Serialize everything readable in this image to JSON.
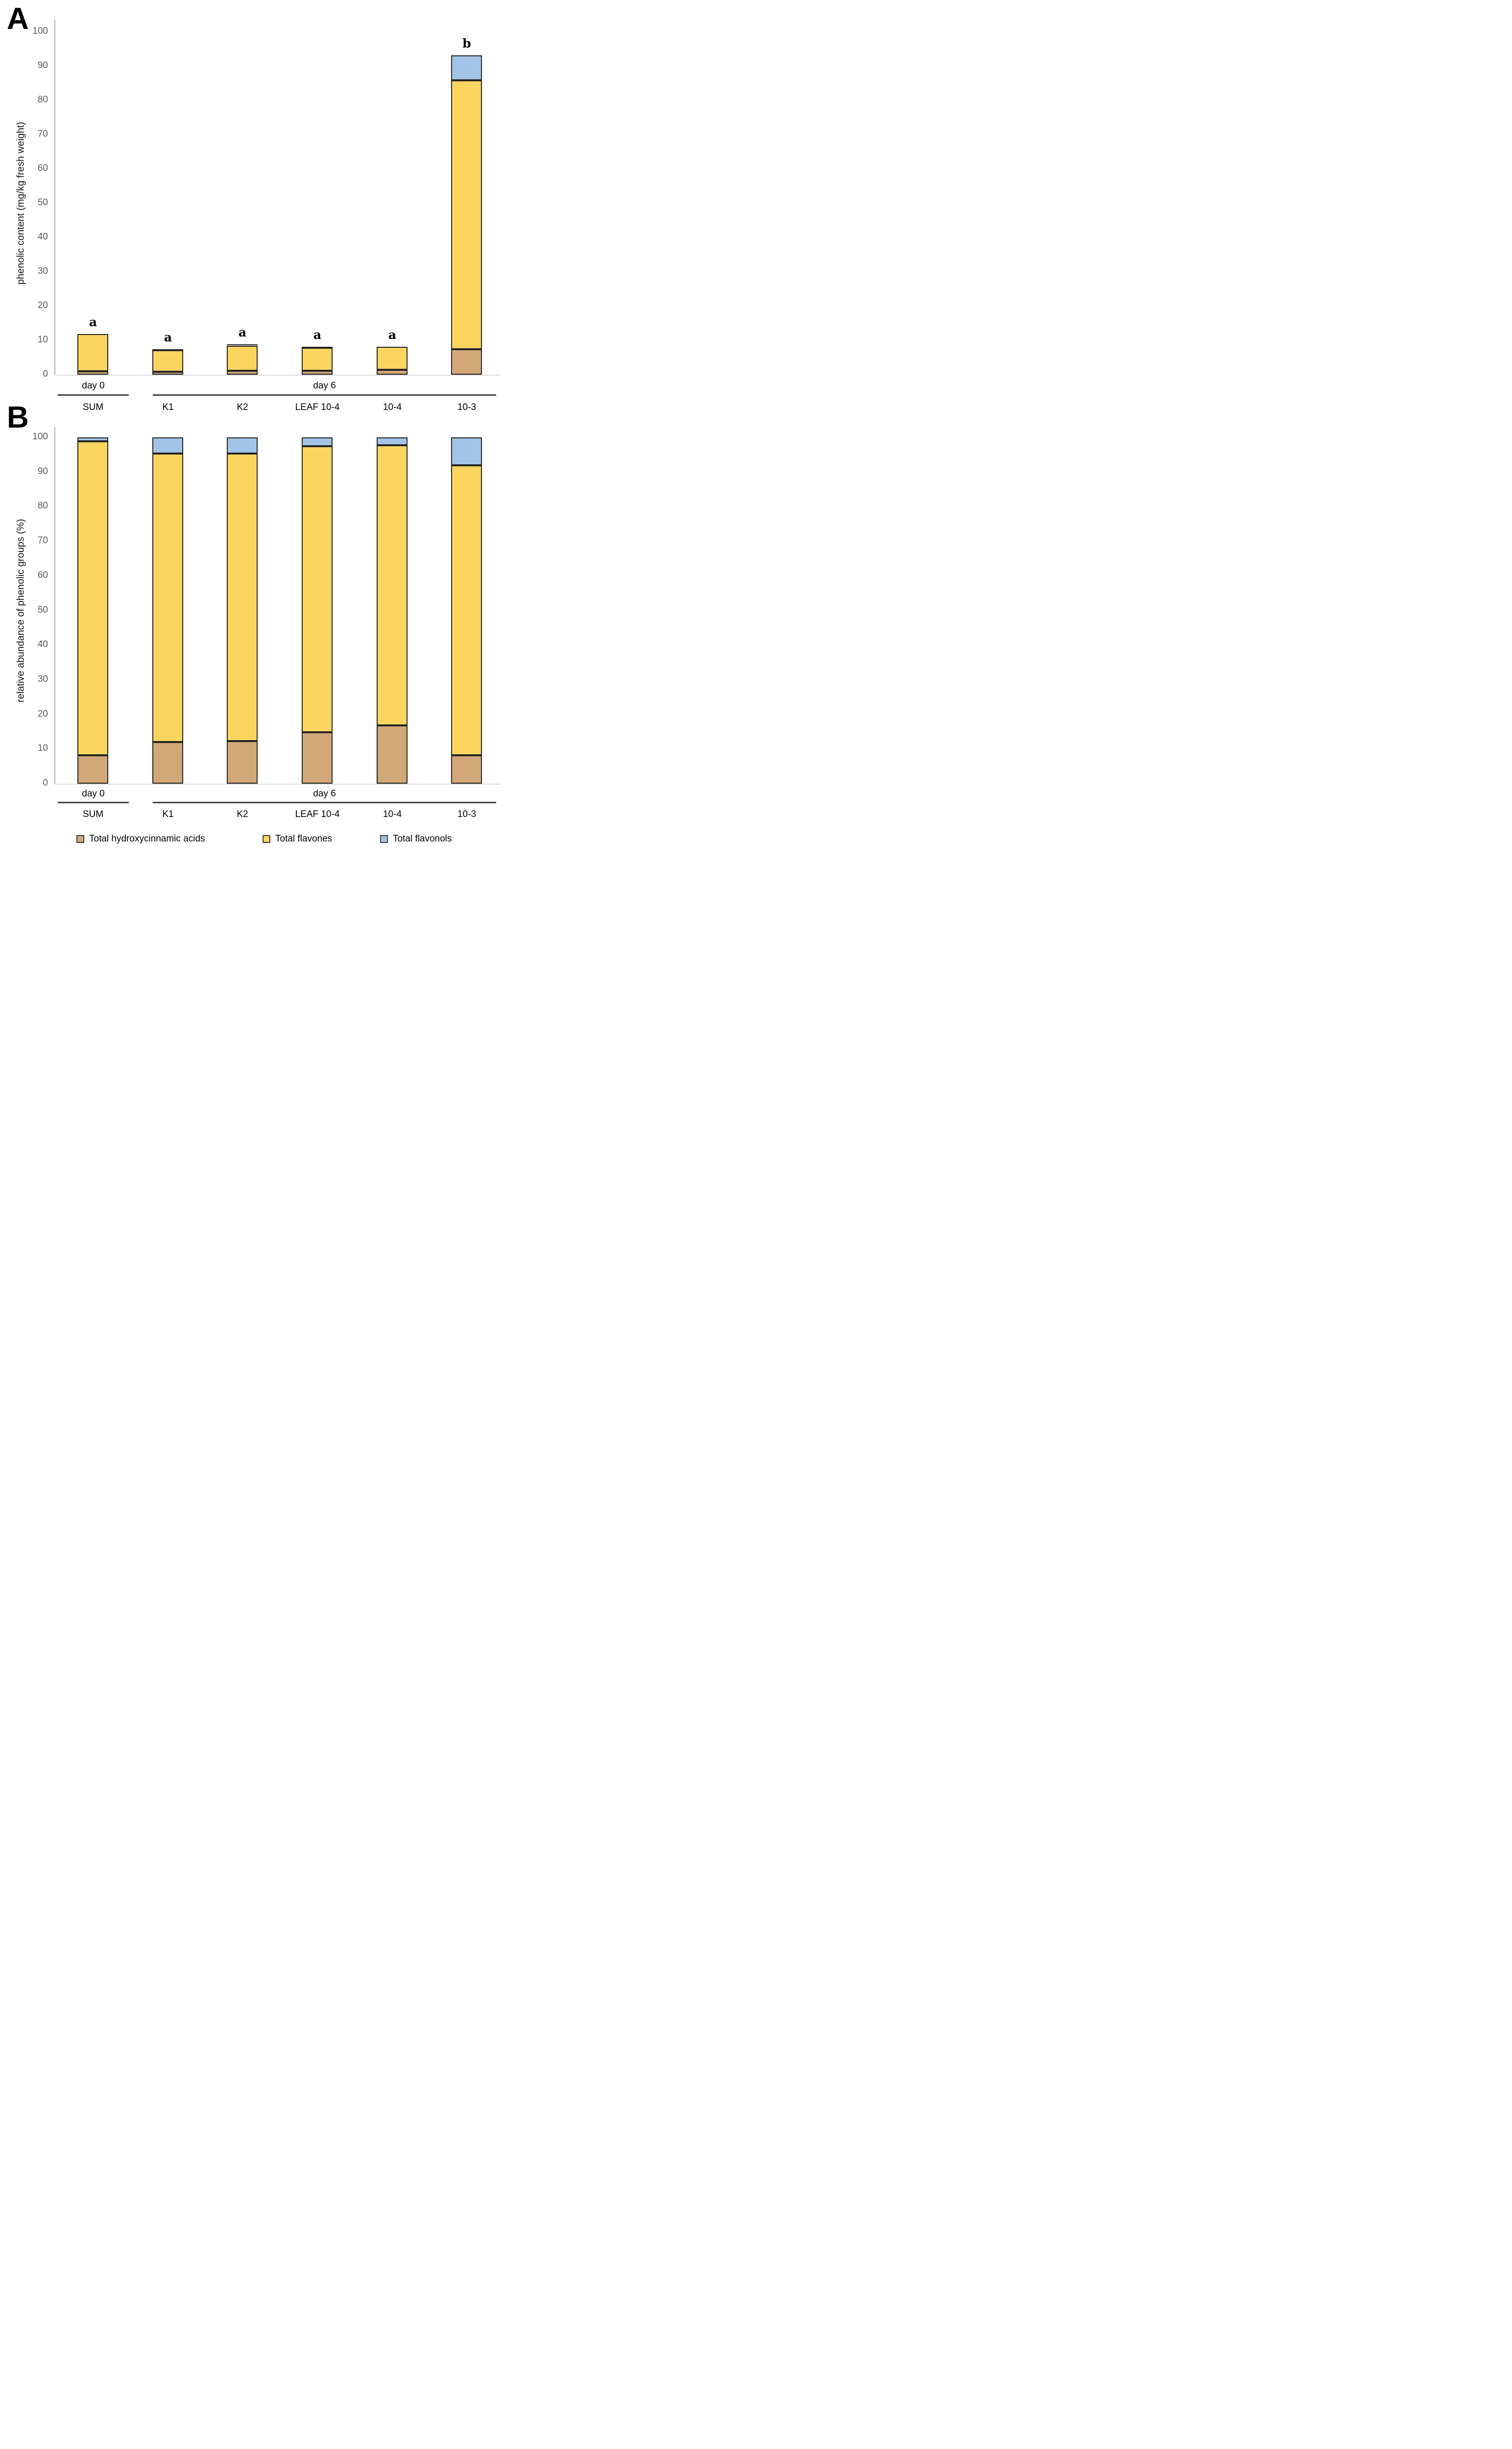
{
  "figure": {
    "panel_a_label": "A",
    "panel_b_label": "B"
  },
  "legend": {
    "items": [
      {
        "label": "Total hydroxycinnamic acids",
        "color": "#D2A878"
      },
      {
        "label": "Total flavones",
        "color": "#FBD560"
      },
      {
        "label": "Total flavonols",
        "color": "#A2C4E6"
      }
    ]
  },
  "colors": {
    "hydroxycinnamic": "#D2A878",
    "flavones": "#FBD560",
    "flavonols": "#A2C4E6",
    "segment_border": "#242424",
    "axis_line": "#B3B3B3",
    "tick_text": "#595959",
    "group_line": "#3F3F3F"
  },
  "chart_data": [
    {
      "type": "bar",
      "stacked": true,
      "panel": "A",
      "ylabel": "phenolic content (mg/kg fresh weight)",
      "xlabel": "",
      "ylim": [
        0,
        100
      ],
      "ytick_step": 10,
      "grid": false,
      "legend_position": "bottom",
      "categories": [
        "SUM",
        "K1",
        "K2",
        "LEAF 10-4",
        "10-4",
        "10-3"
      ],
      "group_labels": [
        {
          "label": "day 0",
          "from": 0,
          "to": 0
        },
        {
          "label": "day 6",
          "from": 1,
          "to": 5
        }
      ],
      "significance_letters": [
        "a",
        "a",
        "a",
        "a",
        "a",
        "b"
      ],
      "series": [
        {
          "name": "Total hydroxycinnamic acids",
          "color": "#D2A878",
          "values": [
            1.0,
            0.9,
            1.1,
            1.2,
            1.4,
            7.4
          ]
        },
        {
          "name": "Total flavones",
          "color": "#FBD560",
          "values": [
            10.8,
            6.3,
            7.4,
            6.7,
            6.7,
            78.5
          ]
        },
        {
          "name": "Total flavonols",
          "color": "#A2C4E6",
          "values": [
            0.1,
            0.3,
            0.4,
            0.2,
            0.1,
            7.2
          ]
        }
      ]
    },
    {
      "type": "bar",
      "stacked": true,
      "panel": "B",
      "ylabel": "relative abundance of phenolic groups (%)",
      "xlabel": "",
      "ylim": [
        0,
        100
      ],
      "ytick_step": 10,
      "grid": false,
      "legend_position": "bottom",
      "categories": [
        "SUM",
        "K1",
        "K2",
        "LEAF 10-4",
        "10-4",
        "10-3"
      ],
      "group_labels": [
        {
          "label": "day 0",
          "from": 0,
          "to": 0
        },
        {
          "label": "day 6",
          "from": 1,
          "to": 5
        }
      ],
      "significance_letters": [],
      "series": [
        {
          "name": "Total hydroxycinnamic acids",
          "color": "#D2A878",
          "values": [
            8.2,
            12.0,
            12.3,
            14.8,
            16.8,
            8.2
          ]
        },
        {
          "name": "Total flavones",
          "color": "#FBD560",
          "values": [
            90.6,
            83.3,
            83.1,
            82.6,
            80.9,
            83.8
          ]
        },
        {
          "name": "Total flavonols",
          "color": "#A2C4E6",
          "values": [
            1.2,
            4.7,
            4.6,
            2.6,
            2.3,
            8.0
          ]
        }
      ]
    }
  ]
}
